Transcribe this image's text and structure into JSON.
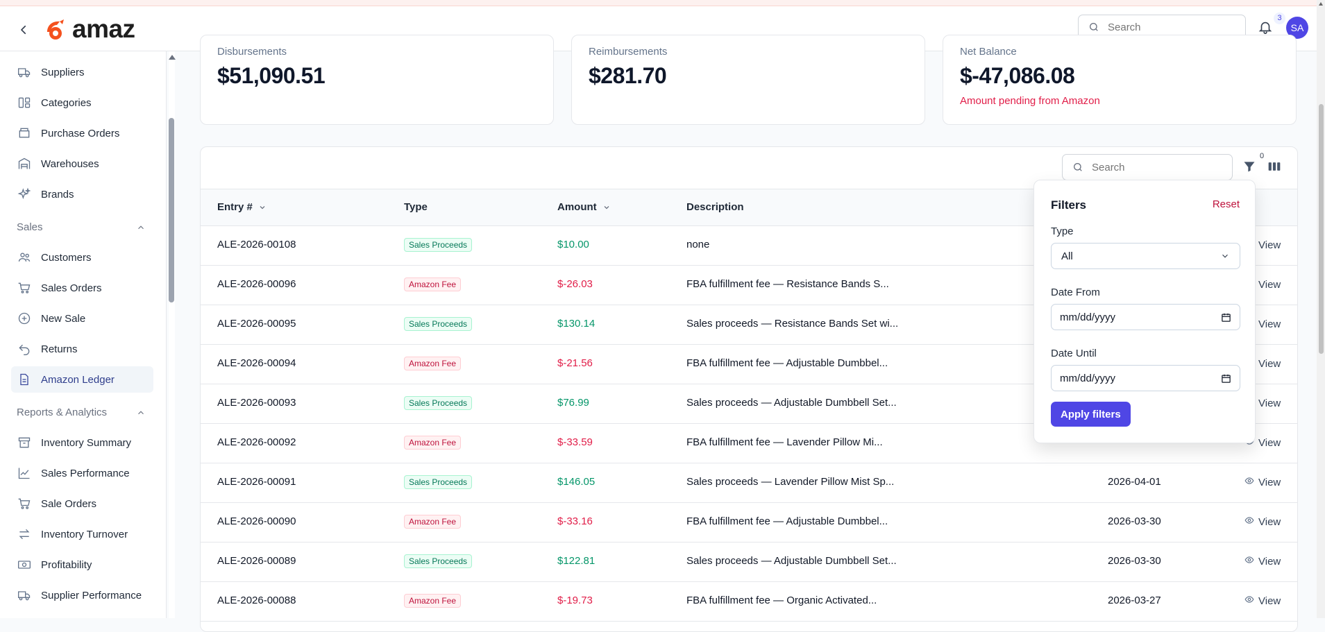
{
  "header": {
    "logo_text": "amaz",
    "search_placeholder": "Search",
    "notification_count": "3",
    "avatar_initials": "SA"
  },
  "sidebar": {
    "items_top": [
      {
        "label": "Suppliers",
        "icon": "truck-icon"
      },
      {
        "label": "Categories",
        "icon": "categories-icon"
      },
      {
        "label": "Purchase Orders",
        "icon": "inbox-icon"
      },
      {
        "label": "Warehouses",
        "icon": "warehouse-icon"
      },
      {
        "label": "Brands",
        "icon": "sparkles-icon"
      }
    ],
    "sales_section": "Sales",
    "sales_items": [
      {
        "label": "Customers",
        "icon": "users-icon"
      },
      {
        "label": "Sales Orders",
        "icon": "cart-icon"
      },
      {
        "label": "New Sale",
        "icon": "plus-circle-icon"
      },
      {
        "label": "Returns",
        "icon": "return-icon"
      },
      {
        "label": "Amazon Ledger",
        "icon": "document-icon"
      }
    ],
    "reports_section": "Reports & Analytics",
    "reports_items": [
      {
        "label": "Inventory Summary",
        "icon": "archive-icon"
      },
      {
        "label": "Sales Performance",
        "icon": "chart-icon"
      },
      {
        "label": "Sale Orders",
        "icon": "cart-icon"
      },
      {
        "label": "Inventory Turnover",
        "icon": "arrows-icon"
      },
      {
        "label": "Profitability",
        "icon": "cash-icon"
      },
      {
        "label": "Supplier Performance",
        "icon": "truck-icon"
      }
    ]
  },
  "cards": [
    {
      "label": "Disbursements",
      "value": "$51,090.51",
      "note": ""
    },
    {
      "label": "Reimbursements",
      "value": "$281.70",
      "note": ""
    },
    {
      "label": "Net Balance",
      "value": "$-47,086.08",
      "note": "Amount pending from Amazon"
    }
  ],
  "table": {
    "search_placeholder": "Search",
    "filter_count": "0",
    "columns": {
      "entry": "Entry #",
      "type": "Type",
      "amount": "Amount",
      "description": "Description"
    },
    "view_label": "View",
    "rows": [
      {
        "entry": "ALE-2026-00108",
        "type": "Sales Proceeds",
        "amount": "$10.00",
        "description": "none",
        "date": ""
      },
      {
        "entry": "ALE-2026-00096",
        "type": "Amazon Fee",
        "amount": "$-26.03",
        "description": "FBA fulfillment fee — Resistance Bands S...",
        "date": ""
      },
      {
        "entry": "ALE-2026-00095",
        "type": "Sales Proceeds",
        "amount": "$130.14",
        "description": "Sales proceeds — Resistance Bands Set wi...",
        "date": ""
      },
      {
        "entry": "ALE-2026-00094",
        "type": "Amazon Fee",
        "amount": "$-21.56",
        "description": "FBA fulfillment fee — Adjustable Dumbbel...",
        "date": ""
      },
      {
        "entry": "ALE-2026-00093",
        "type": "Sales Proceeds",
        "amount": "$76.99",
        "description": "Sales proceeds — Adjustable Dumbbell Set...",
        "date": ""
      },
      {
        "entry": "ALE-2026-00092",
        "type": "Amazon Fee",
        "amount": "$-33.59",
        "description": "FBA fulfillment fee — Lavender Pillow Mi...",
        "date": ""
      },
      {
        "entry": "ALE-2026-00091",
        "type": "Sales Proceeds",
        "amount": "$146.05",
        "description": "Sales proceeds — Lavender Pillow Mist Sp...",
        "date": "2026-04-01"
      },
      {
        "entry": "ALE-2026-00090",
        "type": "Amazon Fee",
        "amount": "$-33.16",
        "description": "FBA fulfillment fee — Adjustable Dumbbel...",
        "date": "2026-03-30"
      },
      {
        "entry": "ALE-2026-00089",
        "type": "Sales Proceeds",
        "amount": "$122.81",
        "description": "Sales proceeds — Adjustable Dumbbell Set...",
        "date": "2026-03-30"
      },
      {
        "entry": "ALE-2026-00088",
        "type": "Amazon Fee",
        "amount": "$-19.73",
        "description": "FBA fulfillment fee — Organic Activated...",
        "date": "2026-03-27"
      }
    ]
  },
  "filters": {
    "title": "Filters",
    "reset": "Reset",
    "type_label": "Type",
    "type_value": "All",
    "date_from_label": "Date From",
    "date_from_value": "mm/dd/yyyy",
    "date_until_label": "Date Until",
    "date_until_value": "mm/dd/yyyy",
    "apply": "Apply filters"
  },
  "colors": {
    "accent": "#4f46e5",
    "positive": "#059669",
    "negative": "#e11d48",
    "logo": "#f4511e"
  }
}
